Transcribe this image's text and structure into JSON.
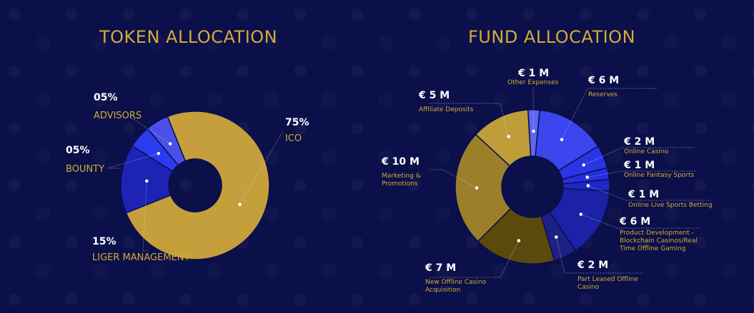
{
  "chart_data": [
    {
      "type": "pie",
      "title": "TOKEN ALLOCATION",
      "unit": "%",
      "slices": [
        {
          "label": "ICO",
          "value": 75,
          "display": "75%",
          "color": "#c49f3c"
        },
        {
          "label": "LIGER MANAGEMENT",
          "value": 15,
          "display": "15%",
          "color": "#1d23b5"
        },
        {
          "label": "BOUNTY",
          "value": 5,
          "display": "05%",
          "color": "#2a3cf0"
        },
        {
          "label": "ADVISORS",
          "value": 5,
          "display": "05%",
          "color": "#4950ea"
        }
      ]
    },
    {
      "type": "pie",
      "title": "FUND ALLOCATION",
      "unit": "€ M",
      "slices": [
        {
          "label": "Other Expenses",
          "value": 1,
          "display": "€ 1 M",
          "color": "#5f66f2"
        },
        {
          "label": "Reserves",
          "value": 6,
          "display": "€ 6 M",
          "color": "#3b45ee"
        },
        {
          "label": "Online Casino",
          "value": 2,
          "display": "€ 2 M",
          "color": "#2a35e6"
        },
        {
          "label": "Online Fantasy Sports",
          "value": 1,
          "display": "€ 1 M",
          "color": "#2430e0"
        },
        {
          "label": "Online Live Sports Betting",
          "value": 1,
          "display": "€ 1 M",
          "color": "#1e28c8"
        },
        {
          "label": "Product Development - Blockchain Casinos/Real Time Offline Gaming",
          "value": 6,
          "display": "€ 6 M",
          "color": "#1b22a6"
        },
        {
          "label": "Part Leased Offline Casino",
          "value": 2,
          "display": "€ 2 M",
          "color": "#1d2186"
        },
        {
          "label": "New Offline Casino Acquisition",
          "value": 7,
          "display": "€ 7 M",
          "color": "#5c4a0c"
        },
        {
          "label": "Marketing & Promotions",
          "value": 10,
          "display": "€ 10 M",
          "color": "#9c7f2a"
        },
        {
          "label": "Affiliate Deposits",
          "value": 5,
          "display": "€ 5 M",
          "color": "#bf9e3a"
        }
      ]
    }
  ]
}
